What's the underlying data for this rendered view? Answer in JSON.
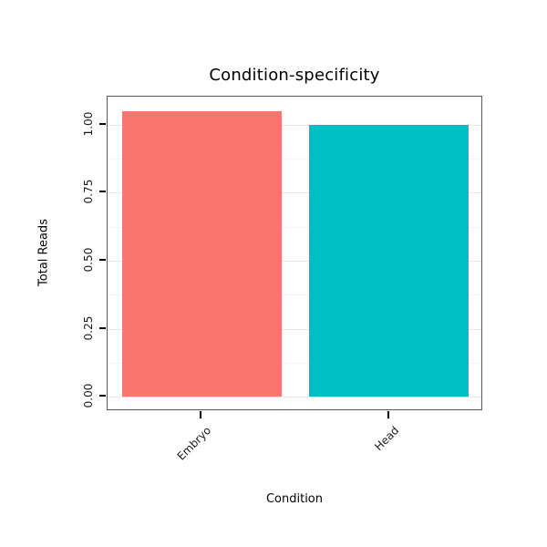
{
  "chart_data": {
    "type": "bar",
    "title": "Condition-specificity",
    "xlabel": "Condition",
    "ylabel": "Total Reads",
    "categories": [
      "Embryo",
      "Head"
    ],
    "values": [
      1.05,
      1.0
    ],
    "bar_colors": [
      "#F8766D",
      "#00BFC4"
    ],
    "yticks": [
      0.0,
      0.25,
      0.5,
      0.75,
      1.0
    ],
    "ytick_labels": [
      "0.00",
      "0.25",
      "0.50",
      "0.75",
      "1.00"
    ],
    "ylim": [
      -0.0525,
      1.1025
    ],
    "grid": "horizontal-major-and-minor",
    "legend": "none",
    "panel_border_color": "#595959",
    "major_grid_color": "#e8e8e8",
    "minor_grid_color": "#f4f4f4",
    "tick_color": "#000000",
    "background": "#ffffff"
  }
}
